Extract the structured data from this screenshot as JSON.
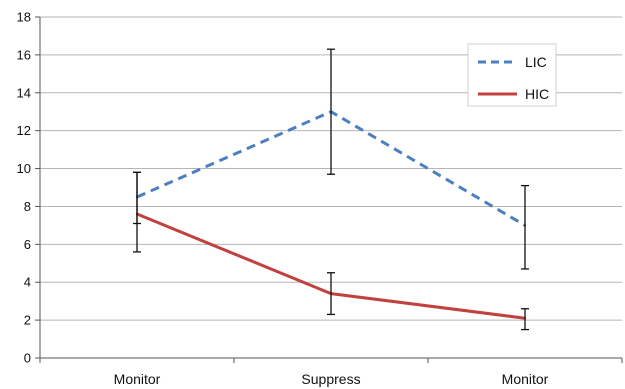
{
  "chart_data": {
    "type": "line",
    "categories": [
      "Monitor",
      "Suppress",
      "Monitor"
    ],
    "ylim": [
      0,
      18
    ],
    "yticks": [
      0,
      2,
      4,
      6,
      8,
      10,
      12,
      14,
      16,
      18
    ],
    "grid": true,
    "legend_position": "top-right",
    "series": [
      {
        "name": "LIC",
        "color": "#4a7fc1",
        "dash": "dashed",
        "values": [
          8.5,
          13.0,
          7.0
        ],
        "error_low": [
          7.1,
          9.7,
          4.7
        ],
        "error_high": [
          9.8,
          16.3,
          9.1
        ]
      },
      {
        "name": "HIC",
        "color": "#c0413e",
        "dash": "solid",
        "values": [
          7.6,
          3.4,
          2.1
        ],
        "error_low": [
          5.6,
          2.3,
          1.5
        ],
        "error_high": [
          9.8,
          4.5,
          2.6
        ]
      }
    ]
  }
}
